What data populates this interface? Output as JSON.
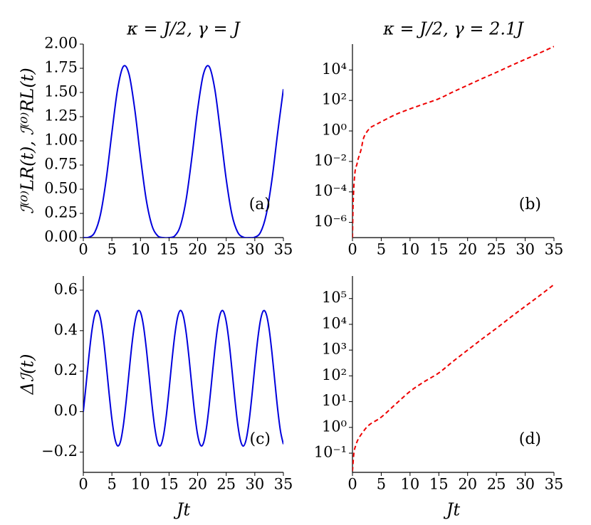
{
  "chart_data": [
    {
      "type": "line",
      "title": "κ = J/2, γ = J",
      "ylabel": "ℐ⁽⁰⁾LR(t), ℐ⁽⁰⁾RL(t)",
      "annotation": "(a)",
      "x": [
        0,
        1,
        2,
        3,
        4,
        5,
        6,
        7,
        8,
        9,
        10,
        11,
        12,
        13,
        14,
        15,
        16,
        17,
        18,
        19,
        20,
        21,
        22,
        23,
        24,
        25,
        26,
        27,
        28,
        29,
        30,
        31,
        32,
        33,
        34,
        35
      ],
      "values": [
        0,
        0.004,
        0.055,
        0.239,
        0.6,
        1.085,
        1.535,
        1.769,
        1.689,
        1.326,
        0.833,
        0.395,
        0.126,
        0.019,
        0,
        0,
        0.018,
        0.126,
        0.398,
        0.835,
        1.326,
        1.687,
        1.769,
        1.535,
        1.083,
        0.602,
        0.238,
        0.056,
        0.004,
        0,
        0.004,
        0.055,
        0.239,
        0.6,
        1.085,
        1.535
      ],
      "color": "#0000dd",
      "linestyle": "solid",
      "log_y": false,
      "xlim": [
        0,
        35
      ],
      "xticks": [
        0,
        5,
        10,
        15,
        20,
        25,
        30,
        35
      ],
      "ylim": [
        0,
        2
      ],
      "yticks": [
        {
          "value": 0,
          "label": "0.00"
        },
        {
          "value": 0.25,
          "label": "0.25"
        },
        {
          "value": 0.5,
          "label": "0.50"
        },
        {
          "value": 0.75,
          "label": "0.75"
        },
        {
          "value": 1,
          "label": "1.00"
        },
        {
          "value": 1.25,
          "label": "1.25"
        },
        {
          "value": 1.5,
          "label": "1.50"
        },
        {
          "value": 1.75,
          "label": "1.75"
        },
        {
          "value": 2,
          "label": "2.00"
        }
      ]
    },
    {
      "type": "line",
      "title": "κ = J/2, γ = 2.1J",
      "annotation": "(b)",
      "x": [
        0,
        0.1,
        0.2,
        0.3,
        0.5,
        0.75,
        1,
        1.5,
        2,
        3,
        4,
        5,
        7.5,
        10,
        12.5,
        15,
        17.5,
        20,
        22.5,
        25,
        27.5,
        30,
        32.5,
        35
      ],
      "values": [
        1e-07,
        1e-05,
        0.0001,
        0.0005,
        0.003,
        0.006,
        0.015,
        0.06,
        0.4,
        1.5,
        2.5,
        4,
        12,
        28,
        60,
        130,
        370,
        1000,
        2700,
        7000,
        19000,
        50000,
        130000,
        350000
      ],
      "color": "#ee0000",
      "linestyle": "dashed",
      "log_y": true,
      "xlim": [
        0,
        35
      ],
      "xticks": [
        0,
        5,
        10,
        15,
        20,
        25,
        30,
        35
      ],
      "ylim": [
        1e-07,
        500000
      ],
      "yticks": [
        {
          "value": 1e-06,
          "label": "10⁻⁶"
        },
        {
          "value": 0.0001,
          "label": "10⁻⁴"
        },
        {
          "value": 0.01,
          "label": "10⁻²"
        },
        {
          "value": 1,
          "label": "10⁰"
        },
        {
          "value": 100,
          "label": "10²"
        },
        {
          "value": 10000,
          "label": "10⁴"
        }
      ]
    },
    {
      "type": "line",
      "ylabel": "Δℐ(t)",
      "xlabel": "Jt",
      "annotation": "(c)",
      "x": [
        0,
        0.5,
        1,
        1.5,
        2,
        2.5,
        3,
        3.5,
        4,
        4.5,
        5,
        5.5,
        6,
        6.5,
        7,
        7.5,
        8,
        8.5,
        9,
        9.5,
        10,
        10.5,
        11,
        11.5,
        12,
        12.5,
        13,
        13.5,
        14,
        14.5,
        15,
        15.5,
        16,
        16.5,
        17,
        17.5,
        18,
        18.5,
        19,
        19.5,
        20,
        20.5,
        21,
        21.5,
        22,
        22.5,
        23,
        23.5,
        24,
        24.5,
        25,
        25.5,
        26,
        26.5,
        27,
        27.5,
        28,
        28.5,
        29,
        29.5,
        30,
        30.5,
        31,
        31.5,
        32,
        32.5,
        33,
        33.5,
        34,
        34.5,
        35
      ],
      "values": [
        0,
        0.137,
        0.279,
        0.4,
        0.478,
        0.499,
        0.46,
        0.366,
        0.236,
        0.093,
        -0.037,
        -0.13,
        -0.169,
        -0.148,
        -0.069,
        0.052,
        0.194,
        0.331,
        0.437,
        0.494,
        0.491,
        0.428,
        0.317,
        0.179,
        0.038,
        -0.079,
        -0.153,
        -0.168,
        -0.122,
        -0.024,
        0.108,
        0.251,
        0.378,
        0.467,
        0.5,
        0.472,
        0.388,
        0.264,
        0.121,
        -0.013,
        -0.115,
        -0.166,
        -0.157,
        -0.088,
        0.026,
        0.165,
        0.305,
        0.419,
        0.487,
        0.496,
        0.445,
        0.343,
        0.208,
        0.065,
        -0.06,
        -0.143,
        -0.17,
        -0.136,
        -0.047,
        0.08,
        0.223,
        0.355,
        0.453,
        0.498,
        0.482,
        0.409,
        0.291,
        0.15,
        0.012,
        -0.098,
        -0.161
      ],
      "color": "#0000dd",
      "linestyle": "solid",
      "log_y": false,
      "xlim": [
        0,
        35
      ],
      "xticks": [
        0,
        5,
        10,
        15,
        20,
        25,
        30,
        35
      ],
      "ylim": [
        -0.3,
        0.67
      ],
      "yticks": [
        {
          "value": -0.2,
          "label": "−0.2"
        },
        {
          "value": 0,
          "label": "0.0"
        },
        0.2,
        0.4,
        0.6
      ]
    },
    {
      "type": "line",
      "xlabel": "Jt",
      "annotation": "(d)",
      "x": [
        0,
        0.25,
        0.5,
        1,
        2,
        3,
        5,
        7.5,
        10,
        12.5,
        15,
        17.5,
        20,
        22.5,
        25,
        27.5,
        30,
        32.5,
        35
      ],
      "values": [
        0.02,
        0.1,
        0.18,
        0.35,
        0.75,
        1.3,
        2.5,
        8,
        25,
        60,
        130,
        370,
        1000,
        2700,
        7000,
        19000,
        50000,
        130000,
        350000
      ],
      "color": "#ee0000",
      "linestyle": "dashed",
      "log_y": true,
      "xlim": [
        0,
        35
      ],
      "xticks": [
        0,
        5,
        10,
        15,
        20,
        25,
        30,
        35
      ],
      "ylim": [
        0.018,
        750000
      ],
      "yticks": [
        {
          "value": 0.1,
          "label": "10⁻¹"
        },
        {
          "value": 1,
          "label": "10⁰"
        },
        {
          "value": 10,
          "label": "10¹"
        },
        {
          "value": 100,
          "label": "10²"
        },
        {
          "value": 1000,
          "label": "10³"
        },
        {
          "value": 10000,
          "label": "10⁴"
        },
        {
          "value": 100000,
          "label": "10⁵"
        }
      ]
    }
  ]
}
